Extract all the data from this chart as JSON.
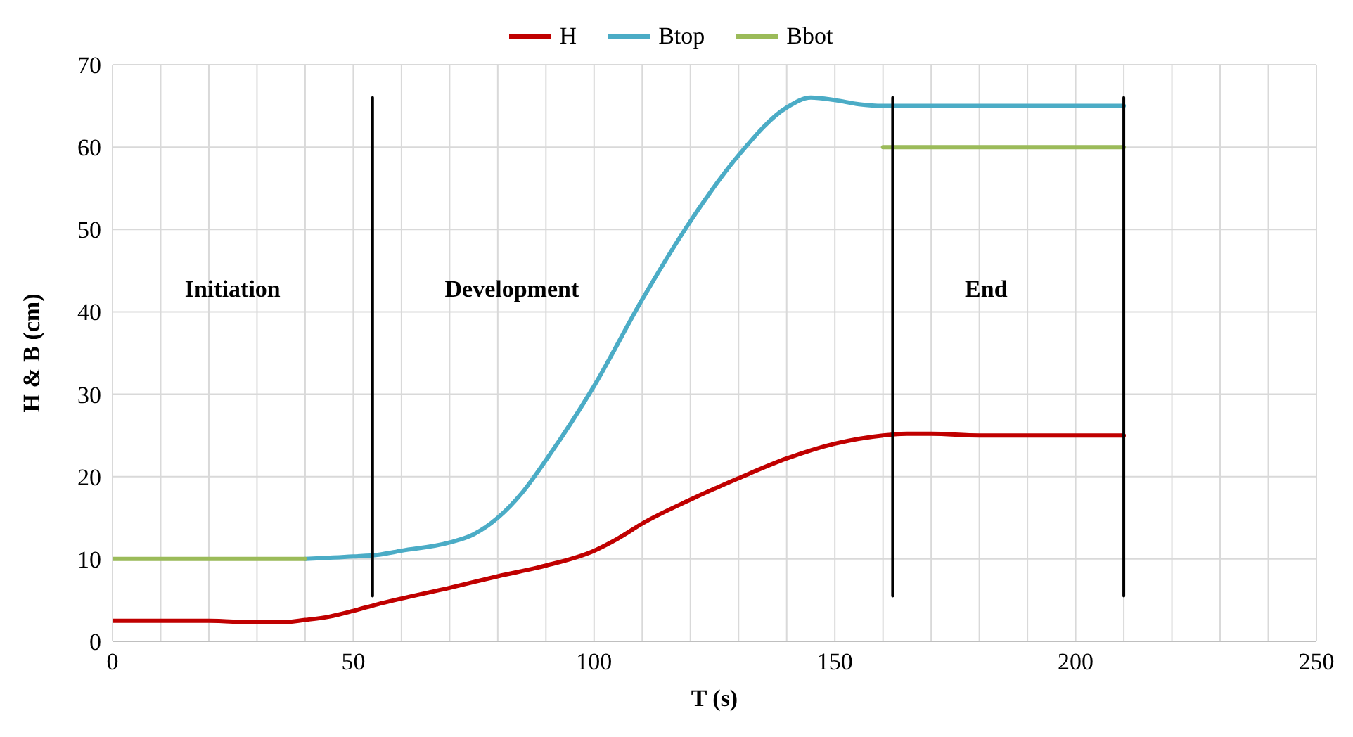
{
  "chart_data": {
    "type": "line",
    "xlabel": "T (s)",
    "ylabel": "H & B (cm)",
    "xlim": [
      0,
      250
    ],
    "ylim": [
      0,
      70
    ],
    "xticks": [
      0,
      {
        "value": 10,
        "label": null
      },
      {
        "value": 20,
        "label": null
      },
      {
        "value": 30,
        "label": null
      },
      {
        "value": 40,
        "label": null
      },
      50,
      {
        "value": 60,
        "label": null
      },
      {
        "value": 70,
        "label": null
      },
      {
        "value": 80,
        "label": null
      },
      {
        "value": 90,
        "label": null
      },
      100,
      {
        "value": 110,
        "label": null
      },
      {
        "value": 120,
        "label": null
      },
      {
        "value": 130,
        "label": null
      },
      {
        "value": 140,
        "label": null
      },
      150,
      {
        "value": 160,
        "label": null
      },
      {
        "value": 170,
        "label": null
      },
      {
        "value": 180,
        "label": null
      },
      {
        "value": 190,
        "label": null
      },
      200,
      {
        "value": 210,
        "label": null
      },
      {
        "value": 220,
        "label": null
      },
      {
        "value": 230,
        "label": null
      },
      {
        "value": 240,
        "label": null
      },
      250
    ],
    "yticks": [
      0,
      10,
      20,
      30,
      40,
      50,
      60,
      70
    ],
    "grid": true,
    "legend": "top",
    "marker": "none",
    "line_style": "solid",
    "series": [
      {
        "name": "H",
        "color": "#c00000",
        "x": [
          0,
          10,
          20,
          30,
          35,
          40,
          45,
          50,
          55,
          60,
          70,
          80,
          90,
          100,
          105,
          110,
          120,
          130,
          140,
          150,
          160,
          165,
          170,
          180,
          190,
          200,
          210
        ],
        "values": [
          2.5,
          2.5,
          2.5,
          2.3,
          2.3,
          2.6,
          3,
          3.7,
          4.5,
          5.2,
          6.5,
          7.9,
          9.2,
          11,
          12.5,
          14.3,
          17.2,
          19.8,
          22.2,
          24,
          25,
          25.2,
          25.2,
          25,
          25,
          25,
          25
        ]
      },
      {
        "name": "Btop",
        "color": "#4bacc6",
        "x": [
          40,
          50,
          55,
          60,
          70,
          75,
          80,
          85,
          90,
          100,
          110,
          120,
          130,
          140,
          145,
          150,
          155,
          160,
          170,
          180,
          190,
          200,
          210
        ],
        "values": [
          10,
          10.3,
          10.5,
          11,
          12,
          13,
          15,
          18,
          22,
          31,
          41.5,
          51,
          59,
          64.8,
          66,
          65.7,
          65.2,
          65,
          65,
          65,
          65,
          65,
          65
        ]
      },
      {
        "name": "Bbot",
        "color": "#9bbb59",
        "x": [
          0,
          40,
          100,
          160,
          210
        ],
        "values": [
          10,
          10,
          null,
          60,
          60
        ]
      },
      {
        "color": "#000000",
        "x": [
          54,
          54
        ],
        "values": [
          66,
          5.5
        ]
      },
      {
        "color": "#000000",
        "x": [
          162,
          162
        ],
        "values": [
          66,
          5.5
        ]
      },
      {
        "color": "#000000",
        "x": [
          210,
          210
        ],
        "values": [
          66,
          5.5
        ]
      }
    ],
    "annotations": [
      "Initiation",
      "Development",
      "End"
    ]
  }
}
